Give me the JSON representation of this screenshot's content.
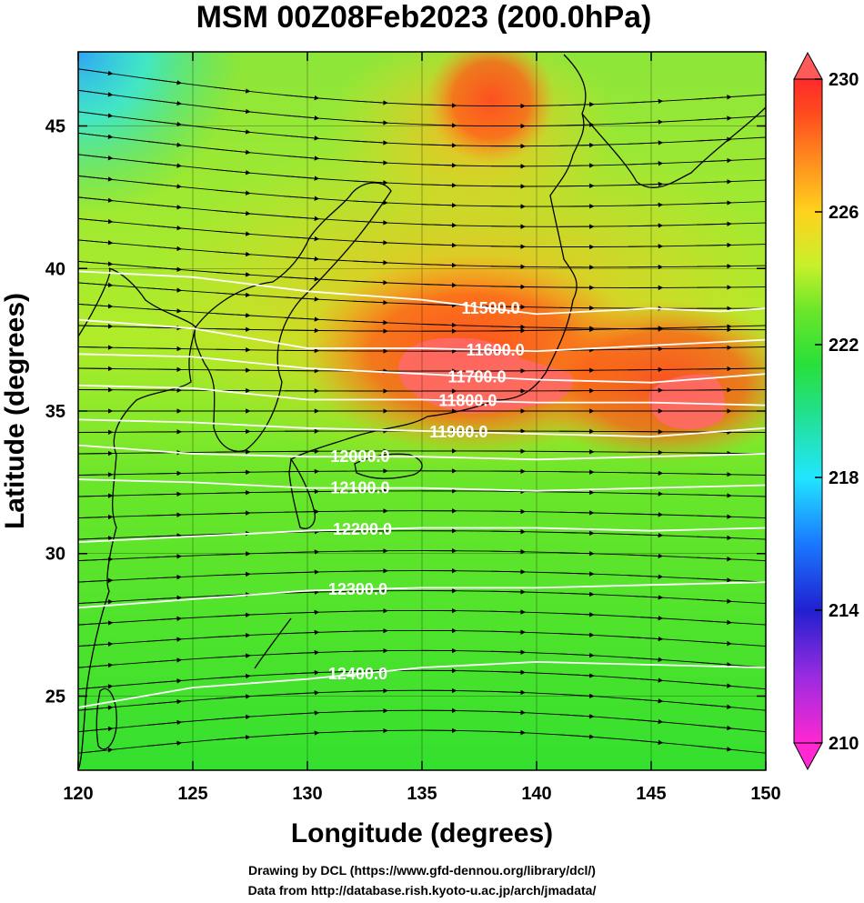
{
  "chart_data": {
    "type": "heatmap",
    "title": "MSM 00Z08Feb2023 (200.0hPa)",
    "xlabel": "Longitude (degrees)",
    "ylabel": "Latitude  (degrees)",
    "xlim": [
      120,
      150
    ],
    "ylim": [
      22.4,
      47.6
    ],
    "xticks": [
      120,
      125,
      130,
      135,
      140,
      145,
      150
    ],
    "yticks": [
      25,
      30,
      35,
      40,
      45
    ],
    "colorbar": {
      "range": [
        210,
        230
      ],
      "ticks": [
        210,
        214,
        218,
        222,
        226,
        230
      ],
      "colors": [
        "#ff28d2",
        "#9a2be0",
        "#2020d0",
        "#1a78ff",
        "#21e6ff",
        "#22e08a",
        "#28e03a",
        "#6ae62a",
        "#c8f02a",
        "#ffd21e",
        "#ff8a1e",
        "#ff4a1e",
        "#ff2a2a"
      ],
      "extend": "both",
      "under_color": "#ff28d2",
      "over_color": "#ff5a5a"
    },
    "contours": [
      {
        "level": "11500.0",
        "points": [
          [
            120,
            39.9
          ],
          [
            125,
            39.7
          ],
          [
            130,
            39.2
          ],
          [
            135,
            38.9
          ],
          [
            140,
            38.4
          ],
          [
            145,
            38.6
          ],
          [
            148,
            38.5
          ],
          [
            150,
            38.6
          ]
        ]
      },
      {
        "level": "11600.0",
        "points": [
          [
            120,
            38.2
          ],
          [
            125,
            37.9
          ],
          [
            130,
            37.2
          ],
          [
            135,
            37.2
          ],
          [
            140,
            37.1
          ],
          [
            145,
            37.3
          ],
          [
            150,
            37.5
          ]
        ]
      },
      {
        "level": "11700.0",
        "points": [
          [
            120,
            37.0
          ],
          [
            125,
            36.9
          ],
          [
            130,
            36.5
          ],
          [
            135,
            36.3
          ],
          [
            140,
            36.1
          ],
          [
            145,
            36.0
          ],
          [
            150,
            36.3
          ]
        ]
      },
      {
        "level": "11800.0",
        "points": [
          [
            120,
            35.9
          ],
          [
            125,
            35.8
          ],
          [
            130,
            35.4
          ],
          [
            135,
            35.4
          ],
          [
            140,
            35.3
          ],
          [
            145,
            35.3
          ],
          [
            150,
            35.2
          ]
        ]
      },
      {
        "level": "11900.0",
        "points": [
          [
            120,
            34.7
          ],
          [
            125,
            34.6
          ],
          [
            130,
            34.4
          ],
          [
            135,
            34.3
          ],
          [
            140,
            34.2
          ],
          [
            145,
            34.1
          ],
          [
            150,
            34.4
          ]
        ]
      },
      {
        "level": "12000.0",
        "points": [
          [
            120,
            33.8
          ],
          [
            125,
            33.5
          ],
          [
            130,
            33.4
          ],
          [
            135,
            33.4
          ],
          [
            140,
            33.3
          ],
          [
            145,
            33.4
          ],
          [
            150,
            33.5
          ]
        ]
      },
      {
        "level": "12100.0",
        "points": [
          [
            120,
            32.6
          ],
          [
            125,
            32.5
          ],
          [
            130,
            32.3
          ],
          [
            135,
            32.3
          ],
          [
            140,
            32.2
          ],
          [
            145,
            32.3
          ],
          [
            150,
            32.4
          ]
        ]
      },
      {
        "level": "12200.0",
        "points": [
          [
            120,
            30.4
          ],
          [
            125,
            30.6
          ],
          [
            130,
            30.8
          ],
          [
            135,
            30.9
          ],
          [
            140,
            30.9
          ],
          [
            145,
            30.8
          ],
          [
            150,
            30.9
          ]
        ]
      },
      {
        "level": "12300.0",
        "points": [
          [
            120,
            28.1
          ],
          [
            125,
            28.4
          ],
          [
            130,
            28.7
          ],
          [
            135,
            28.8
          ],
          [
            140,
            28.8
          ],
          [
            145,
            28.9
          ],
          [
            150,
            29.0
          ]
        ]
      },
      {
        "level": "12400.0",
        "points": [
          [
            120,
            24.6
          ],
          [
            125,
            25.3
          ],
          [
            130,
            25.6
          ],
          [
            135,
            26.0
          ],
          [
            140,
            26.2
          ],
          [
            145,
            26.1
          ],
          [
            150,
            26.0
          ]
        ]
      }
    ]
  },
  "credits": {
    "line1": "Drawing by DCL (https://www.gfd-dennou.org/library/dcl/)",
    "line2": "Data from http://database.rish.kyoto-u.ac.jp/arch/jmadata/"
  }
}
